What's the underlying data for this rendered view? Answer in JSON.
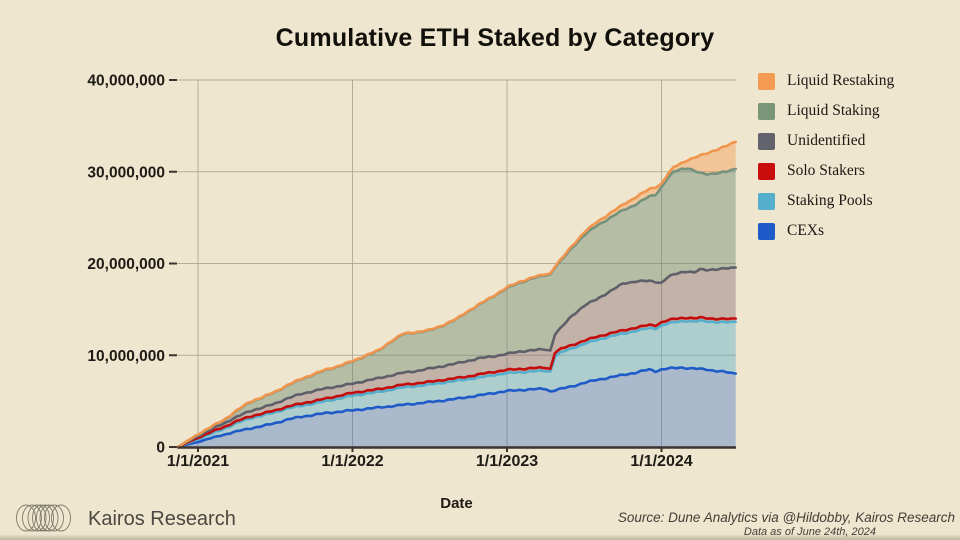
{
  "title": "Cumulative ETH Staked by Category",
  "x_axis": {
    "label": "Date",
    "tick_labels": [
      "1/1/2021",
      "1/1/2022",
      "1/1/2023",
      "1/1/2024"
    ],
    "tick_years": [
      2021,
      2022,
      2023,
      2024
    ]
  },
  "y_axis": {
    "tick_labels": [
      "40,000,000",
      "30,000,000",
      "20,000,000",
      "10,000,000",
      "0"
    ],
    "tick_values_millions": [
      40,
      30,
      20,
      10,
      0
    ]
  },
  "legend": [
    {
      "key": "liquid-restaking",
      "label": "Liquid Restaking",
      "color": "#F49B52"
    },
    {
      "key": "liquid-staking",
      "label": "Liquid Staking",
      "color": "#7A9679"
    },
    {
      "key": "unidentified",
      "label": "Unidentified",
      "color": "#63636D"
    },
    {
      "key": "solo-stakers",
      "label": "Solo Stakers",
      "color": "#C90C0C"
    },
    {
      "key": "staking-pools",
      "label": "Staking Pools",
      "color": "#55AECC"
    },
    {
      "key": "cexs",
      "label": "CEXs",
      "color": "#1E5BC8"
    }
  ],
  "footer": {
    "brand": "Kairos Research",
    "source": "Source: Dune Analytics via @Hildobby, Kairos Research",
    "as_of": "Data as of June 24th, 2024"
  },
  "colors": {
    "background": "#EEE6CF",
    "gridline": "#A89F8D",
    "axis": "#3A362E",
    "tick_text": "#1F1B15"
  },
  "chart_data": {
    "type": "area",
    "stacked": true,
    "title": "Cumulative ETH Staked by Category",
    "xlabel": "Date",
    "ylabel": "",
    "grid": true,
    "legend_position": "right",
    "ylim_eth": [
      0,
      40000000
    ],
    "x_range_years": [
      2020.87,
      2024.48
    ],
    "values_unit": "millions of ETH (cumulative stacked top of each band)",
    "x_years": [
      2020.87,
      2021.0,
      2021.08,
      2021.17,
      2021.25,
      2021.33,
      2021.42,
      2021.5,
      2021.58,
      2021.67,
      2021.75,
      2021.83,
      2021.92,
      2022.0,
      2022.08,
      2022.17,
      2022.25,
      2022.33,
      2022.42,
      2022.5,
      2022.58,
      2022.67,
      2022.75,
      2022.83,
      2022.92,
      2023.0,
      2023.08,
      2023.17,
      2023.25,
      2023.28,
      2023.31,
      2023.35,
      2023.42,
      2023.5,
      2023.58,
      2023.67,
      2023.75,
      2023.83,
      2023.92,
      2023.96,
      2024.0,
      2024.04,
      2024.08,
      2024.13,
      2024.17,
      2024.21,
      2024.25,
      2024.29,
      2024.33,
      2024.38,
      2024.42,
      2024.45,
      2024.48
    ],
    "series": [
      {
        "name": "CEXs",
        "line_color": "#1E5BC8",
        "fill_rgba": "rgba(30,91,200,0.32)",
        "cumulative_top_millions": [
          0,
          0.55,
          0.95,
          1.35,
          1.7,
          2.0,
          2.3,
          2.6,
          3.0,
          3.3,
          3.5,
          3.7,
          3.85,
          4.0,
          4.15,
          4.3,
          4.45,
          4.6,
          4.75,
          4.9,
          5.05,
          5.25,
          5.45,
          5.65,
          5.9,
          6.1,
          6.2,
          6.3,
          6.35,
          6.05,
          6.2,
          6.35,
          6.6,
          7.0,
          7.3,
          7.6,
          7.85,
          8.1,
          8.45,
          8.25,
          8.45,
          8.55,
          8.6,
          8.65,
          8.6,
          8.55,
          8.5,
          8.45,
          8.35,
          8.25,
          8.15,
          8.05,
          8.0
        ]
      },
      {
        "name": "Staking Pools",
        "line_color": "#55AECC",
        "fill_rgba": "rgba(85,174,204,0.42)",
        "cumulative_top_millions": [
          0,
          0.85,
          1.4,
          2.0,
          2.6,
          3.1,
          3.45,
          3.8,
          4.2,
          4.5,
          4.75,
          5.0,
          5.3,
          5.6,
          5.8,
          6.0,
          6.25,
          6.5,
          6.65,
          6.8,
          7.0,
          7.2,
          7.4,
          7.6,
          7.85,
          8.05,
          8.15,
          8.25,
          8.3,
          8.2,
          9.9,
          10.3,
          10.75,
          11.25,
          11.65,
          12.05,
          12.35,
          12.65,
          12.95,
          12.9,
          13.25,
          13.45,
          13.6,
          13.7,
          13.75,
          13.65,
          13.75,
          13.7,
          13.65,
          13.6,
          13.6,
          13.6,
          13.65
        ]
      },
      {
        "name": "Solo Stakers",
        "line_color": "#C30D0D",
        "fill_rgba": "rgba(195,13,13,0.30)",
        "cumulative_top_millions": [
          0,
          1.0,
          1.6,
          2.2,
          2.8,
          3.3,
          3.65,
          4.0,
          4.4,
          4.75,
          5.0,
          5.3,
          5.6,
          5.9,
          6.1,
          6.3,
          6.55,
          6.8,
          6.95,
          7.1,
          7.3,
          7.5,
          7.7,
          7.95,
          8.2,
          8.4,
          8.5,
          8.6,
          8.65,
          8.5,
          10.3,
          10.7,
          11.1,
          11.6,
          12.0,
          12.4,
          12.7,
          13.0,
          13.3,
          13.25,
          13.6,
          13.8,
          13.95,
          14.05,
          14.1,
          14.0,
          14.1,
          14.05,
          14.0,
          13.95,
          13.95,
          13.95,
          14.0
        ]
      },
      {
        "name": "Unidentified",
        "line_color": "#5F5F6A",
        "fill_rgba": "rgba(128,100,108,0.40)",
        "cumulative_top_millions": [
          0,
          1.2,
          1.9,
          2.6,
          3.25,
          3.9,
          4.3,
          4.75,
          5.3,
          5.8,
          6.1,
          6.4,
          6.65,
          6.9,
          7.2,
          7.5,
          7.8,
          8.1,
          8.3,
          8.55,
          8.8,
          9.1,
          9.4,
          9.7,
          9.9,
          10.15,
          10.4,
          10.55,
          10.65,
          10.5,
          12.3,
          13.0,
          14.3,
          15.4,
          16.1,
          17.0,
          17.8,
          18.05,
          18.1,
          18.0,
          17.9,
          18.5,
          18.8,
          19.05,
          19.15,
          19.0,
          19.35,
          19.3,
          19.35,
          19.4,
          19.45,
          19.5,
          19.55
        ]
      },
      {
        "name": "Liquid Staking",
        "line_color": "#74927D",
        "fill_rgba": "rgba(104,134,108,0.42)",
        "cumulative_top_millions": [
          0,
          1.35,
          2.1,
          2.95,
          3.9,
          4.85,
          5.4,
          6.0,
          6.7,
          7.4,
          7.9,
          8.4,
          8.85,
          9.3,
          9.9,
          10.5,
          11.5,
          12.3,
          12.5,
          12.7,
          13.2,
          13.9,
          14.8,
          15.6,
          16.5,
          17.3,
          17.9,
          18.4,
          18.75,
          18.8,
          19.6,
          20.3,
          21.7,
          23.1,
          24.1,
          25.0,
          25.8,
          26.4,
          27.3,
          27.5,
          28.3,
          29.3,
          30.0,
          30.3,
          30.4,
          30.1,
          29.85,
          29.75,
          29.8,
          29.9,
          30.0,
          30.15,
          30.3
        ]
      },
      {
        "name": "Liquid Restaking",
        "line_color": "#F0954E",
        "fill_rgba": "rgba(244,158,84,0.45)",
        "cumulative_top_millions": [
          0,
          1.4,
          2.15,
          3.0,
          3.95,
          4.9,
          5.45,
          6.05,
          6.75,
          7.45,
          7.95,
          8.45,
          8.9,
          9.35,
          9.95,
          10.55,
          11.55,
          12.35,
          12.55,
          12.75,
          13.25,
          13.95,
          14.85,
          15.65,
          16.55,
          17.4,
          18.0,
          18.5,
          18.85,
          18.9,
          19.7,
          20.45,
          21.9,
          23.4,
          24.5,
          25.5,
          26.4,
          27.2,
          28.1,
          28.3,
          28.7,
          29.7,
          30.5,
          30.95,
          31.3,
          31.5,
          31.75,
          32.0,
          32.25,
          32.55,
          32.8,
          33.05,
          33.25
        ]
      }
    ]
  }
}
